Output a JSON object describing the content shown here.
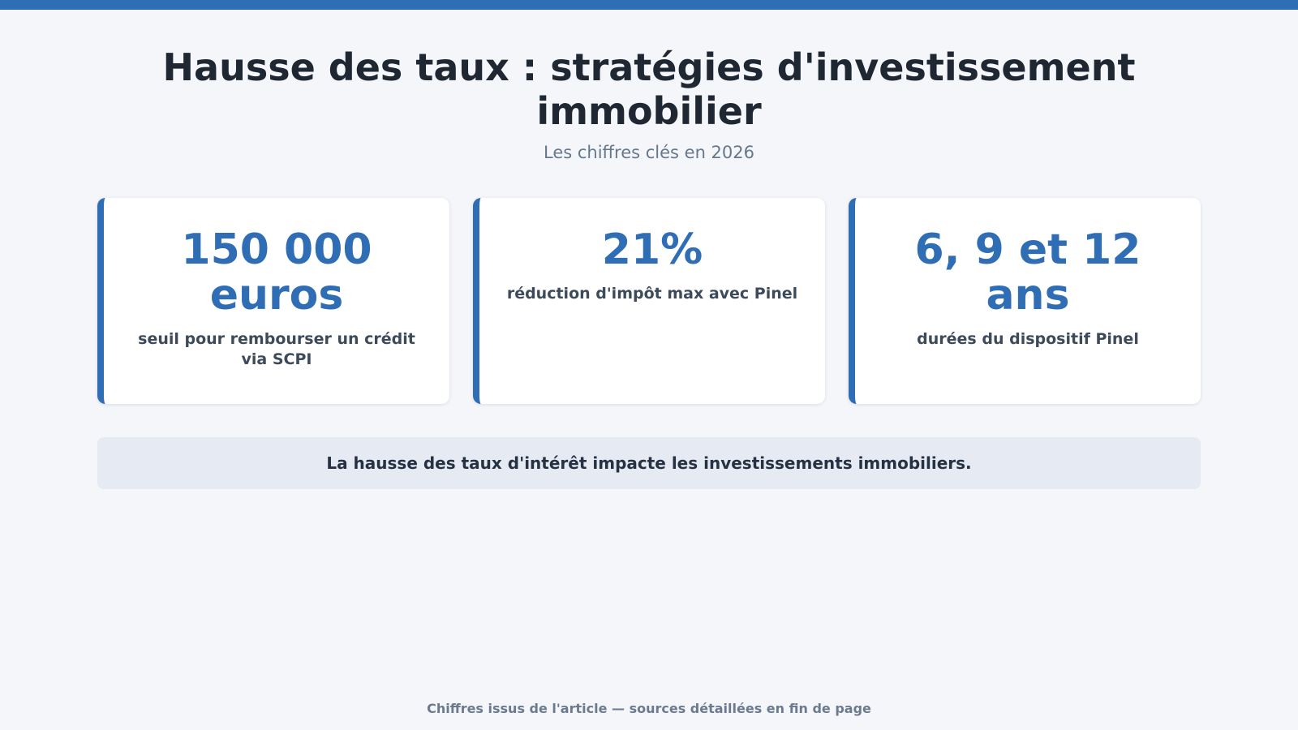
{
  "header": {
    "title": "Hausse des taux : stratégies d'investissement immobilier",
    "subtitle": "Les chiffres clés en 2026"
  },
  "cards": [
    {
      "value": "150 000 euros",
      "label": "seuil pour rembourser un crédit via SCPI"
    },
    {
      "value": "21%",
      "label": "réduction d'impôt max avec Pinel"
    },
    {
      "value": "6, 9 et 12 ans",
      "label": "durées du dispositif Pinel"
    }
  ],
  "banner": {
    "text": "La hausse des taux d'intérêt impacte les investissements immobiliers."
  },
  "footer": {
    "note": "Chiffres issus de l'article — sources détaillées en fin de page"
  },
  "colors": {
    "accent": "#2f6db5",
    "background": "#f4f6fa",
    "banner_background": "#e6ebf3"
  }
}
